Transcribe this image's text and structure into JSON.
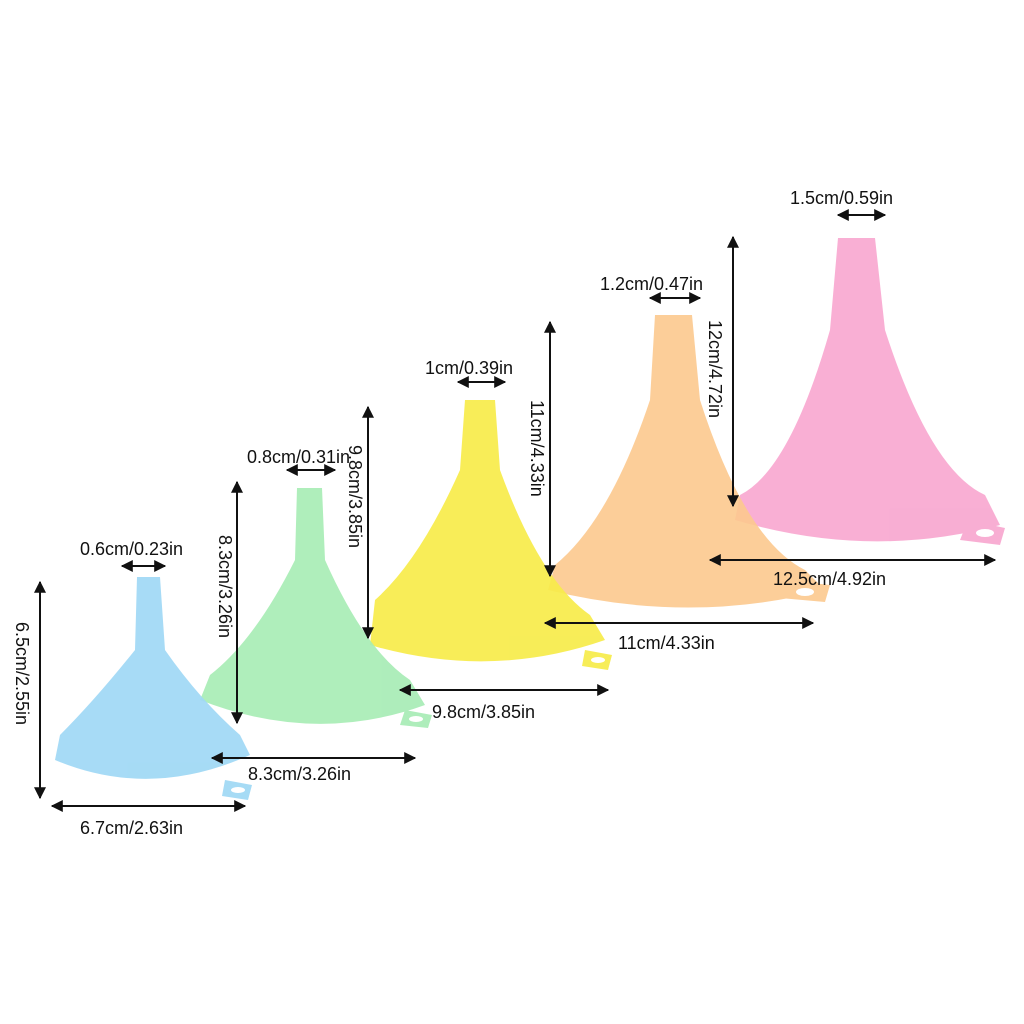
{
  "colors": {
    "blue": "#9fd8f5",
    "green": "#a6ecb4",
    "yellow": "#f7ec4a",
    "orange": "#fcc98e",
    "pink": "#f8a6cf"
  },
  "funnels": [
    {
      "color_name": "blue",
      "spout": "0.6cm/0.23in",
      "height": "6.5cm/2.55in",
      "width": "6.7cm/2.63in"
    },
    {
      "color_name": "green",
      "spout": "0.8cm/0.31in",
      "height": "8.3cm/3.26in",
      "width": "8.3cm/3.26in"
    },
    {
      "color_name": "yellow",
      "spout": "1cm/0.39in",
      "height": "9.8cm/3.85in",
      "width": "9.8cm/3.85in"
    },
    {
      "color_name": "orange",
      "spout": "1.2cm/0.47in",
      "height": "11cm/4.33in",
      "width": "11cm/4.33in"
    },
    {
      "color_name": "pink",
      "spout": "1.5cm/0.59in",
      "height": "12cm/4.72in",
      "width": "12.5cm/4.92in"
    }
  ]
}
